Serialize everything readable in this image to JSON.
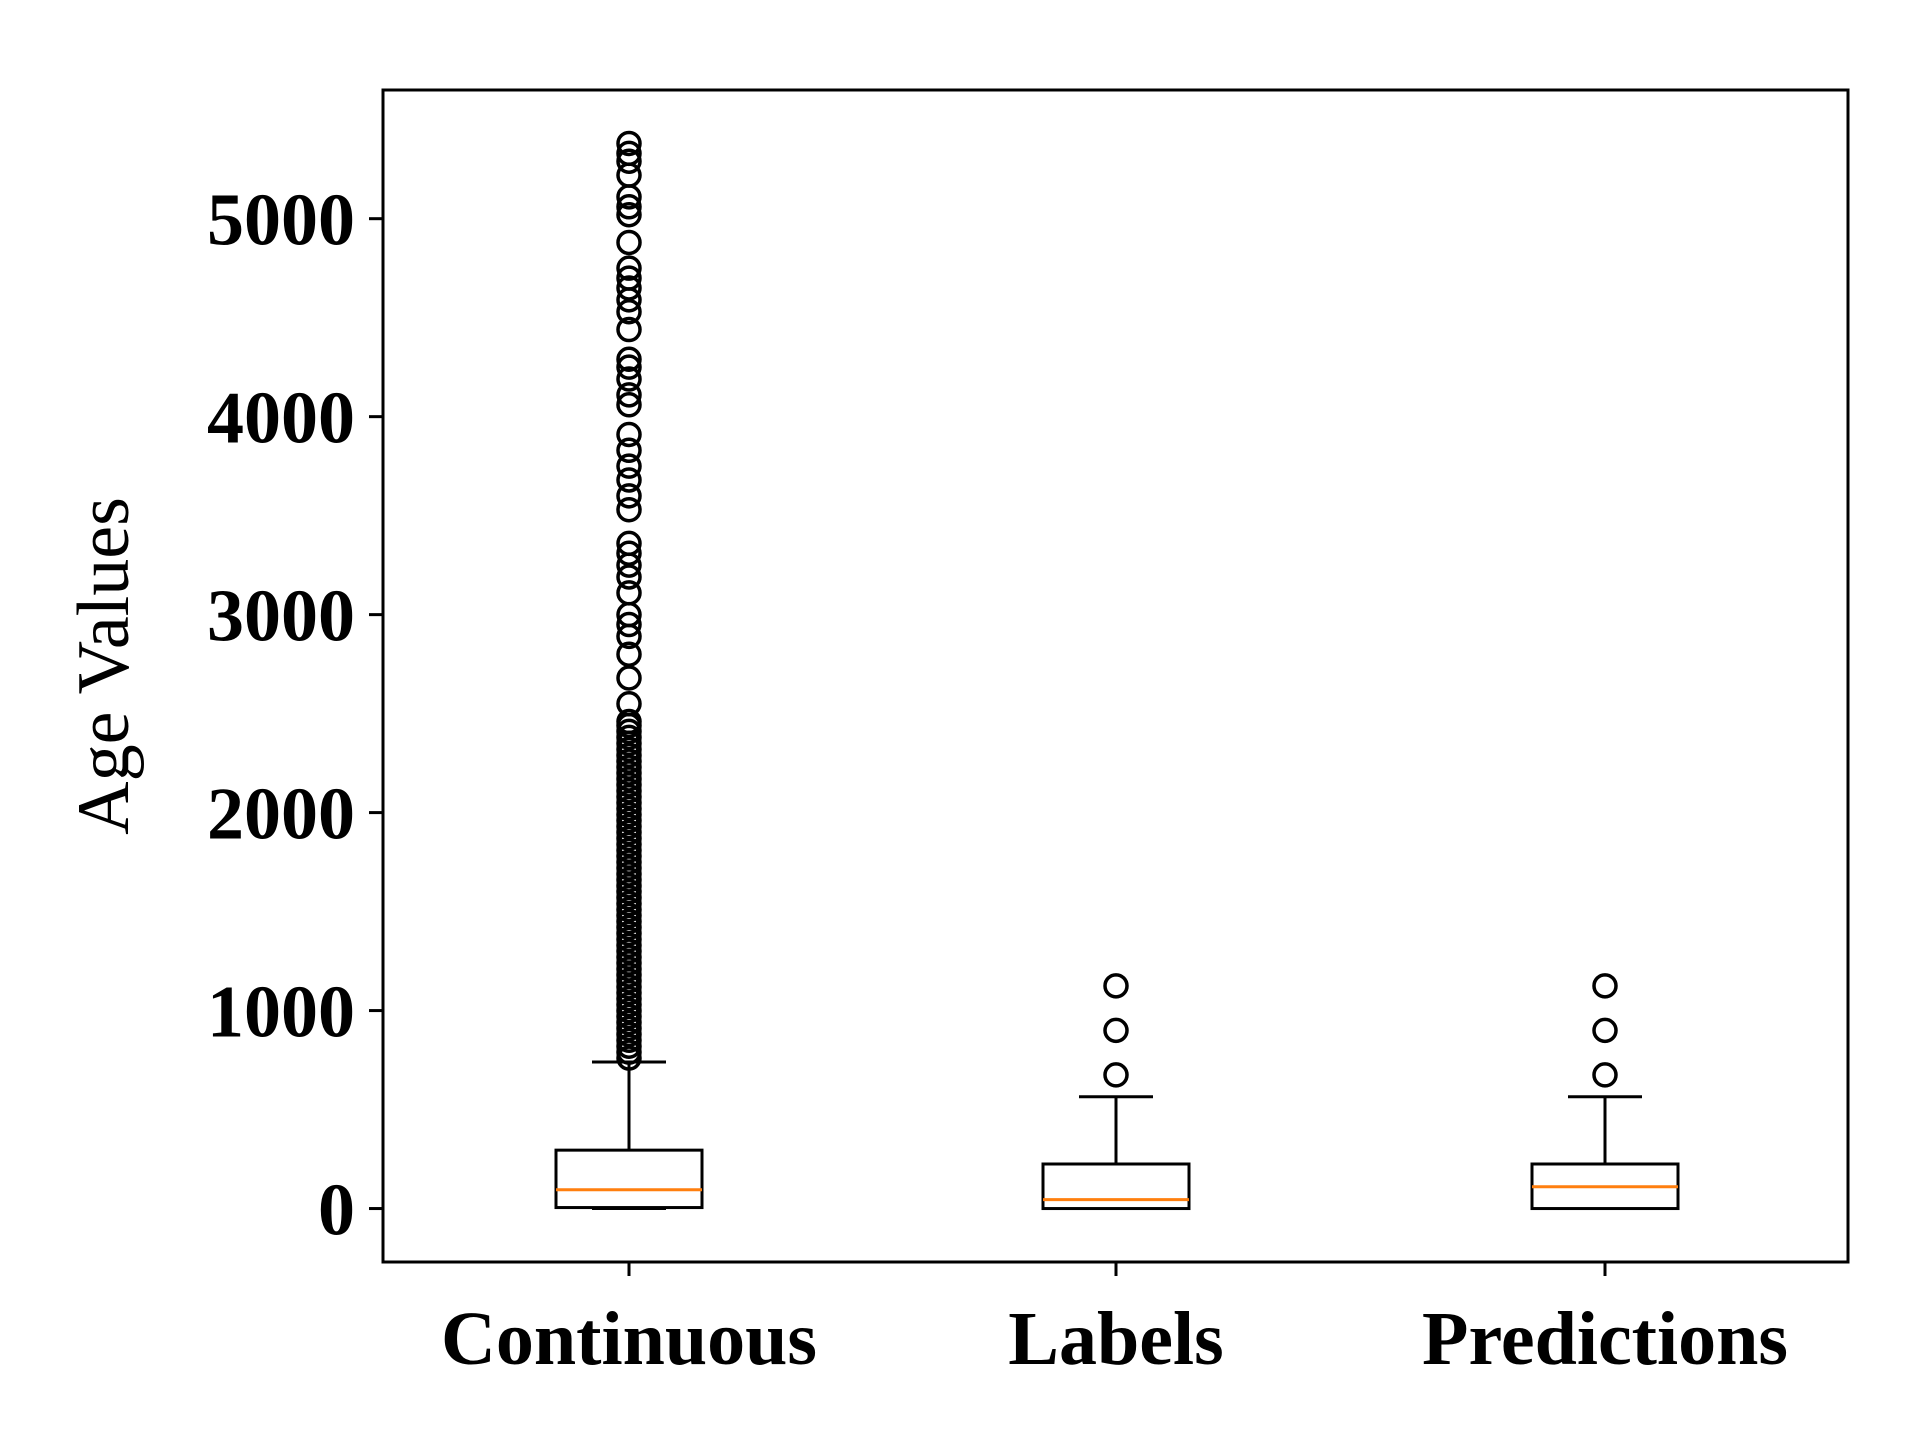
{
  "chart_data": {
    "type": "box",
    "title": "",
    "xlabel": "",
    "ylabel": "Age Values",
    "ylim": [
      -270,
      5650
    ],
    "yticks": [
      0,
      1000,
      2000,
      3000,
      4000,
      5000
    ],
    "ytick_labels": [
      "0",
      "1000",
      "2000",
      "3000",
      "4000",
      "5000"
    ],
    "categories": [
      "Continuous",
      "Labels",
      "Predictions"
    ],
    "grid": false,
    "legend": "none",
    "colors": {
      "box": "#000000",
      "median": "#ff7f0e",
      "flier": "#000000",
      "background": "#ffffff"
    },
    "series": [
      {
        "category": "Continuous",
        "whisker_low": 0,
        "q1": 5,
        "median": 95,
        "q3": 295,
        "whisker_high": 740,
        "fliers": [
          760,
          790,
          820,
          850,
          880,
          910,
          940,
          970,
          1000,
          1030,
          1060,
          1090,
          1120,
          1150,
          1180,
          1210,
          1240,
          1270,
          1300,
          1330,
          1360,
          1390,
          1420,
          1450,
          1480,
          1510,
          1540,
          1570,
          1600,
          1630,
          1660,
          1690,
          1720,
          1750,
          1780,
          1810,
          1840,
          1870,
          1900,
          1930,
          1960,
          1990,
          2020,
          2050,
          2080,
          2110,
          2140,
          2170,
          2200,
          2230,
          2260,
          2290,
          2320,
          2350,
          2380,
          2410,
          2440,
          2460,
          2550,
          2680,
          2800,
          2890,
          2950,
          3000,
          3110,
          3190,
          3250,
          3310,
          3360,
          3530,
          3600,
          3680,
          3750,
          3830,
          3910,
          4060,
          4110,
          4190,
          4250,
          4290,
          4440,
          4530,
          4590,
          4650,
          4700,
          4750,
          4880,
          5020,
          5060,
          5110,
          5220,
          5290,
          5330,
          5380
        ]
      },
      {
        "category": "Labels",
        "whisker_low": 0,
        "q1": 0,
        "median": 45,
        "q3": 225,
        "whisker_high": 565,
        "fliers": [
          675,
          900,
          1125
        ]
      },
      {
        "category": "Predictions",
        "whisker_low": 0,
        "q1": 0,
        "median": 110,
        "q3": 225,
        "whisker_high": 565,
        "fliers": [
          675,
          900,
          1125
        ]
      }
    ]
  }
}
